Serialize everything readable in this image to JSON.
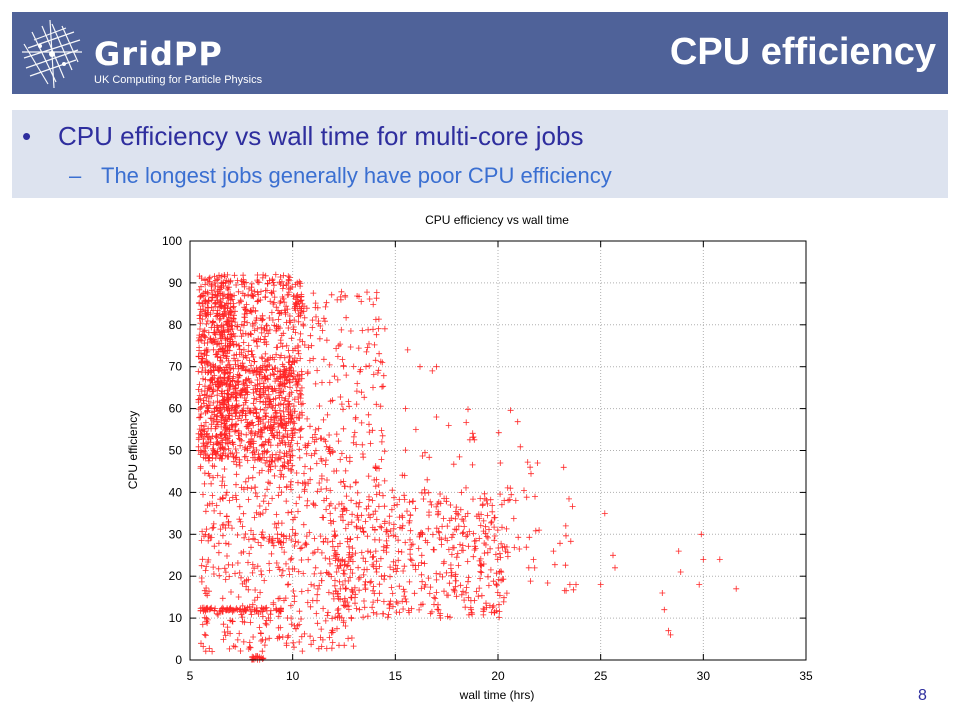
{
  "header": {
    "logo_text": "GridPP",
    "logo_subtitle": "UK Computing for Particle Physics",
    "title": "CPU efficiency",
    "background_color": "#4f6299"
  },
  "bullets": {
    "main": "CPU efficiency vs wall time for multi-core jobs",
    "sub": "The longest jobs generally have poor CPU efficiency",
    "main_color": "#2e2e9e",
    "sub_color": "#3a6fd1"
  },
  "page_number": "8",
  "chart_data": {
    "type": "scatter",
    "title": "CPU efficiency vs wall time",
    "xlabel": "wall time (hrs)",
    "ylabel": "CPU efficiency",
    "xlim": [
      5,
      35
    ],
    "ylim": [
      0,
      100
    ],
    "xticks": [
      5,
      10,
      15,
      20,
      25,
      30,
      35
    ],
    "yticks": [
      0,
      10,
      20,
      30,
      40,
      50,
      60,
      70,
      80,
      90,
      100
    ],
    "grid": true,
    "marker": "plus",
    "color": "#ff0000",
    "clusters": [
      {
        "x_range": [
          5.4,
          7.0
        ],
        "y_range": [
          48,
          92
        ],
        "count": 520
      },
      {
        "x_range": [
          6.5,
          10.5
        ],
        "y_range": [
          55,
          92
        ],
        "count": 620
      },
      {
        "x_range": [
          7.0,
          10.0
        ],
        "y_range": [
          45,
          70
        ],
        "count": 260
      },
      {
        "x_range": [
          5.5,
          12.0
        ],
        "y_range": [
          28,
          55
        ],
        "count": 260
      },
      {
        "x_range": [
          10.0,
          14.5
        ],
        "y_range": [
          40,
          88
        ],
        "count": 200
      },
      {
        "x_range": [
          12.0,
          20.5
        ],
        "y_range": [
          10,
          40
        ],
        "count": 520
      },
      {
        "x_range": [
          5.5,
          13.0
        ],
        "y_range": [
          2,
          30
        ],
        "count": 320
      },
      {
        "x_range": [
          5.5,
          9.5
        ],
        "y_range": [
          11.5,
          12.5
        ],
        "count": 80
      },
      {
        "x_range": [
          8.0,
          8.6
        ],
        "y_range": [
          0,
          1
        ],
        "count": 20
      },
      {
        "x_range": [
          14.0,
          22.0
        ],
        "y_range": [
          35,
          60
        ],
        "count": 40
      },
      {
        "x_range": [
          20.0,
          24.0
        ],
        "y_range": [
          15,
          40
        ],
        "count": 25
      }
    ],
    "points": [
      [
        15.6,
        74
      ],
      [
        16.2,
        70
      ],
      [
        16.8,
        69
      ],
      [
        17.0,
        70
      ],
      [
        17.0,
        58
      ],
      [
        17.6,
        56
      ],
      [
        15.5,
        60
      ],
      [
        16.0,
        55
      ],
      [
        23.2,
        46
      ],
      [
        23.3,
        32
      ],
      [
        23.5,
        18
      ],
      [
        23.8,
        18
      ],
      [
        25.2,
        35
      ],
      [
        25.6,
        25
      ],
      [
        25.7,
        22
      ],
      [
        25.0,
        18
      ],
      [
        28.0,
        16
      ],
      [
        28.1,
        12
      ],
      [
        28.3,
        7
      ],
      [
        28.4,
        6
      ],
      [
        28.8,
        26
      ],
      [
        28.9,
        21
      ],
      [
        29.9,
        30
      ],
      [
        30.0,
        24
      ],
      [
        29.8,
        18
      ],
      [
        30.8,
        24
      ],
      [
        31.6,
        17
      ],
      [
        21.8,
        39
      ],
      [
        22.0,
        31
      ],
      [
        22.7,
        26
      ],
      [
        21.5,
        22
      ],
      [
        20.6,
        41
      ]
    ]
  }
}
